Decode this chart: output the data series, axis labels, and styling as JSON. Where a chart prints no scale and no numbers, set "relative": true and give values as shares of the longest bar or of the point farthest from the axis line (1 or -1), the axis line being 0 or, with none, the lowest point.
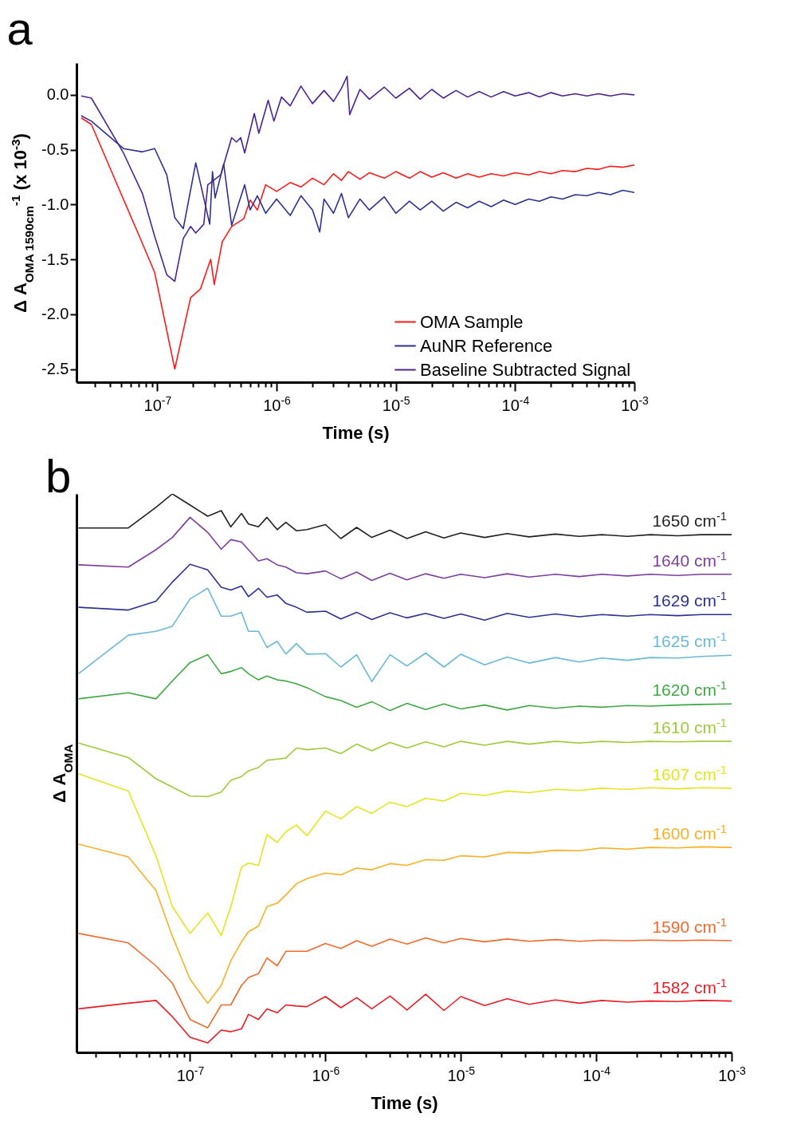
{
  "chart_data": [
    {
      "type": "line",
      "title": "a",
      "xlabel": "Time (s)",
      "ylabel": "Δ A$_{OMA 1590cm}$$^{-1}$ (x 10$^{-3}$)",
      "log": "x",
      "legend": "bottom right",
      "xlim": [
        2.1e-08,
        0.001
      ],
      "xticks": [
        {
          "value": 3e-08,
          "label": null
        },
        {
          "value": 4e-08,
          "label": null
        },
        {
          "value": 5e-08,
          "label": null
        },
        {
          "value": 6e-08,
          "label": null
        },
        {
          "value": 7e-08,
          "label": null
        },
        {
          "value": 8e-08,
          "label": null
        },
        {
          "value": 9e-08,
          "label": null
        },
        {
          "value": 1e-07,
          "label": "10$^{-7}$"
        },
        {
          "value": 2e-07,
          "label": null
        },
        {
          "value": 3e-07,
          "label": null
        },
        {
          "value": 4e-07,
          "label": null
        },
        {
          "value": 5e-07,
          "label": null
        },
        {
          "value": 6e-07,
          "label": null
        },
        {
          "value": 7e-07,
          "label": null
        },
        {
          "value": 8e-07,
          "label": null
        },
        {
          "value": 9e-07,
          "label": null
        },
        {
          "value": 1e-06,
          "label": "10$^{-6}$"
        },
        {
          "value": 2e-06,
          "label": null
        },
        {
          "value": 3e-06,
          "label": null
        },
        {
          "value": 4e-06,
          "label": null
        },
        {
          "value": 5e-06,
          "label": null
        },
        {
          "value": 6e-06,
          "label": null
        },
        {
          "value": 7e-06,
          "label": null
        },
        {
          "value": 8e-06,
          "label": null
        },
        {
          "value": 9e-06,
          "label": null
        },
        {
          "value": 1e-05,
          "label": "10$^{-5}$"
        },
        {
          "value": 2e-05,
          "label": null
        },
        {
          "value": 3e-05,
          "label": null
        },
        {
          "value": 4e-05,
          "label": null
        },
        {
          "value": 5e-05,
          "label": null
        },
        {
          "value": 6e-05,
          "label": null
        },
        {
          "value": 7e-05,
          "label": null
        },
        {
          "value": 8e-05,
          "label": null
        },
        {
          "value": 9e-05,
          "label": null
        },
        {
          "value": 0.0001,
          "label": "10$^{-4}$"
        },
        {
          "value": 0.0002,
          "label": null
        },
        {
          "value": 0.0003,
          "label": null
        },
        {
          "value": 0.0004,
          "label": null
        },
        {
          "value": 0.0005,
          "label": null
        },
        {
          "value": 0.0006,
          "label": null
        },
        {
          "value": 0.0007,
          "label": null
        },
        {
          "value": 0.0008,
          "label": null
        },
        {
          "value": 0.0009,
          "label": null
        },
        {
          "value": 0.001,
          "label": "10$^{-3}$"
        }
      ],
      "ylim": [
        -2.62,
        0.29
      ],
      "yticks": [
        {
          "value": 0,
          "label": "0.0"
        },
        -0.5,
        {
          "value": -1,
          "label": "-1.0"
        },
        -1.5,
        {
          "value": -2,
          "label": "-2.0"
        },
        -2.5
      ],
      "series": [
        {
          "name": "OMA Sample",
          "color": "#ff1a1a",
          "x": [
            2.3e-08,
            2.8e-08,
            5e-08,
            7e-08,
            9.5e-08,
            1.4e-07,
            1.9e-07,
            2.3e-07,
            2.8e-07,
            3e-07,
            3.5e-07,
            4.2e-07,
            5.3e-07,
            6e-07,
            6.9e-07,
            8.1e-07,
            1e-06,
            1.3e-06,
            1.6e-06,
            2e-06,
            2.5e-06,
            3e-06,
            3.5e-06,
            4e-06,
            5e-06,
            6e-06,
            8e-06,
            1e-05,
            1.3e-05,
            1.6e-05,
            2e-05,
            2.5e-05,
            3.2e-05,
            4e-05,
            5e-05,
            6.3e-05,
            8e-05,
            0.0001,
            0.00013,
            0.00016,
            0.0002,
            0.00025,
            0.00032,
            0.0004,
            0.0005,
            0.00063,
            0.0008,
            0.001
          ],
          "values": [
            -0.21,
            -0.27,
            -0.91,
            -1.28,
            -1.62,
            -2.5,
            -1.85,
            -1.77,
            -1.5,
            -1.73,
            -1.34,
            -1.2,
            -1.13,
            -0.96,
            -1.05,
            -0.82,
            -0.88,
            -0.8,
            -0.84,
            -0.76,
            -0.82,
            -0.72,
            -0.78,
            -0.7,
            -0.77,
            -0.71,
            -0.76,
            -0.7,
            -0.76,
            -0.7,
            -0.75,
            -0.71,
            -0.76,
            -0.72,
            -0.75,
            -0.72,
            -0.74,
            -0.71,
            -0.73,
            -0.7,
            -0.72,
            -0.69,
            -0.7,
            -0.67,
            -0.68,
            -0.65,
            -0.66,
            -0.64
          ]
        },
        {
          "name": "AuNR Reference",
          "color": "#2e3192",
          "x": [
            2.3e-08,
            2.8e-08,
            5.2e-08,
            7.5e-08,
            9.5e-08,
            1.2e-07,
            1.4e-07,
            1.65e-07,
            2.1e-07,
            2.75e-07,
            2.9e-07,
            3.05e-07,
            3.6e-07,
            4.2e-07,
            5.4e-07,
            6e-07,
            6.9e-07,
            8.1e-07,
            1e-06,
            1.3e-06,
            1.6e-06,
            2e-06,
            2.3e-06,
            2.5e-06,
            3e-06,
            3.5e-06,
            4e-06,
            5e-06,
            6e-06,
            8e-06,
            1e-05,
            1.3e-05,
            1.6e-05,
            2e-05,
            2.5e-05,
            3.2e-05,
            4e-05,
            5e-05,
            6.3e-05,
            8e-05,
            0.0001,
            0.00013,
            0.00016,
            0.0002,
            0.00025,
            0.00032,
            0.0004,
            0.0005,
            0.00063,
            0.0008,
            0.001
          ],
          "values": [
            -0.19,
            -0.24,
            -0.49,
            -0.52,
            -0.49,
            -0.73,
            -1.12,
            -1.22,
            -0.62,
            -1.18,
            -0.7,
            -0.94,
            -0.63,
            -1.19,
            -0.82,
            -1.05,
            -0.92,
            -1.08,
            -0.95,
            -1.1,
            -0.92,
            -1.05,
            -1.25,
            -0.95,
            -1.08,
            -0.9,
            -1.12,
            -0.95,
            -1.05,
            -0.93,
            -1.08,
            -0.97,
            -1.05,
            -0.97,
            -1.06,
            -0.98,
            -1.03,
            -0.97,
            -1.02,
            -0.96,
            -1.0,
            -0.95,
            -0.97,
            -0.93,
            -0.95,
            -0.91,
            -0.92,
            -0.89,
            -0.91,
            -0.87,
            -0.89
          ]
        },
        {
          "name": "Baseline Subtracted Signal",
          "color": "#4b2591",
          "x": [
            2.3e-08,
            2.8e-08,
            5.2e-08,
            7.5e-08,
            9.5e-08,
            1.2e-07,
            1.4e-07,
            1.65e-07,
            1.9e-07,
            2.1e-07,
            2.45e-07,
            2.65e-07,
            3.4e-07,
            4.2e-07,
            4.6e-07,
            5e-07,
            5.4e-07,
            6.5e-07,
            7.1e-07,
            8.5e-07,
            9.5e-07,
            1.1e-06,
            1.3e-06,
            1.6e-06,
            2e-06,
            2.5e-06,
            3e-06,
            3.5e-06,
            3.9e-06,
            4.1e-06,
            5e-06,
            6e-06,
            8e-06,
            1e-05,
            1.3e-05,
            1.6e-05,
            2e-05,
            2.5e-05,
            3.2e-05,
            4e-05,
            5e-05,
            6.3e-05,
            8e-05,
            0.0001,
            0.00013,
            0.00016,
            0.0002,
            0.00025,
            0.00032,
            0.0004,
            0.0005,
            0.00063,
            0.0008,
            0.001
          ],
          "values": [
            -0.01,
            -0.03,
            -0.53,
            -0.9,
            -1.29,
            -1.64,
            -1.7,
            -1.31,
            -1.2,
            -1.26,
            -1.18,
            -0.82,
            -0.73,
            -0.39,
            -0.43,
            -0.39,
            -0.53,
            -0.17,
            -0.35,
            -0.05,
            -0.24,
            -0.02,
            -0.1,
            0.08,
            -0.08,
            0.04,
            -0.06,
            0.06,
            0.17,
            -0.18,
            0.05,
            -0.04,
            0.07,
            -0.03,
            0.06,
            -0.04,
            0.05,
            -0.03,
            0.04,
            -0.02,
            0.03,
            -0.02,
            0.03,
            -0.01,
            0.02,
            -0.02,
            0.02,
            -0.01,
            0.01,
            -0.01,
            0.01,
            -0.01,
            0.01,
            0.0
          ]
        }
      ]
    },
    {
      "type": "line",
      "title": "b",
      "xlabel": "Time (s)",
      "ylabel": "Δ A$_{OMA}$",
      "log": "x",
      "relative": true,
      "xlim": [
        1.45e-08,
        0.001
      ],
      "xticks": [
        {
          "value": 2e-08,
          "label": null
        },
        {
          "value": 3e-08,
          "label": null
        },
        {
          "value": 4e-08,
          "label": null
        },
        {
          "value": 5e-08,
          "label": null
        },
        {
          "value": 6e-08,
          "label": null
        },
        {
          "value": 7e-08,
          "label": null
        },
        {
          "value": 8e-08,
          "label": null
        },
        {
          "value": 9e-08,
          "label": null
        },
        {
          "value": 1e-07,
          "label": "10$^{-7}$"
        },
        {
          "value": 2e-07,
          "label": null
        },
        {
          "value": 3e-07,
          "label": null
        },
        {
          "value": 4e-07,
          "label": null
        },
        {
          "value": 5e-07,
          "label": null
        },
        {
          "value": 6e-07,
          "label": null
        },
        {
          "value": 7e-07,
          "label": null
        },
        {
          "value": 8e-07,
          "label": null
        },
        {
          "value": 9e-07,
          "label": null
        },
        {
          "value": 1e-06,
          "label": "10$^{-6}$"
        },
        {
          "value": 2e-06,
          "label": null
        },
        {
          "value": 3e-06,
          "label": null
        },
        {
          "value": 4e-06,
          "label": null
        },
        {
          "value": 5e-06,
          "label": null
        },
        {
          "value": 6e-06,
          "label": null
        },
        {
          "value": 7e-06,
          "label": null
        },
        {
          "value": 8e-06,
          "label": null
        },
        {
          "value": 9e-06,
          "label": null
        },
        {
          "value": 1e-05,
          "label": "10$^{-5}$"
        },
        {
          "value": 2e-05,
          "label": null
        },
        {
          "value": 3e-05,
          "label": null
        },
        {
          "value": 4e-05,
          "label": null
        },
        {
          "value": 5e-05,
          "label": null
        },
        {
          "value": 6e-05,
          "label": null
        },
        {
          "value": 7e-05,
          "label": null
        },
        {
          "value": 8e-05,
          "label": null
        },
        {
          "value": 9e-05,
          "label": null
        },
        {
          "value": 0.0001,
          "label": "10$^{-4}$"
        },
        {
          "value": 0.0002,
          "label": null
        },
        {
          "value": 0.0003,
          "label": null
        },
        {
          "value": 0.0004,
          "label": null
        },
        {
          "value": 0.0005,
          "label": null
        },
        {
          "value": 0.0006,
          "label": null
        },
        {
          "value": 0.0007,
          "label": null
        },
        {
          "value": 0.0008,
          "label": null
        },
        {
          "value": 0.0009,
          "label": null
        },
        {
          "value": 0.001,
          "label": "10$^{-3}$"
        }
      ],
      "x": [
        1.5e-08,
        3.5e-08,
        5.6e-08,
        7.4e-08,
        1e-07,
        1.35e-07,
        1.7e-07,
        2e-07,
        2.4e-07,
        2.7e-07,
        3.2e-07,
        3.7e-07,
        4.4e-07,
        5.1e-07,
        6.1e-07,
        7.3e-07,
        1e-06,
        1.3e-06,
        1.7e-06,
        2.2e-06,
        3e-06,
        4e-06,
        5.5e-06,
        7.5e-06,
        1e-05,
        1.5e-05,
        2.2e-05,
        3.2e-05,
        5e-05,
        7.5e-05,
        0.00011,
        0.00017,
        0.00025,
        0.0004,
        0.0006,
        0.001
      ],
      "series": [
        {
          "name": "1650 cm$^{-1}$",
          "color": "#231f20",
          "values": [
            0.939,
            0.939,
            0.976,
            1.0,
            0.98,
            0.96,
            0.97,
            0.941,
            0.965,
            0.946,
            0.941,
            0.958,
            0.936,
            0.949,
            0.934,
            0.936,
            0.945,
            0.92,
            0.94,
            0.922,
            0.935,
            0.92,
            0.932,
            0.921,
            0.93,
            0.922,
            0.929,
            0.923,
            0.928,
            0.924,
            0.927,
            0.924,
            0.927,
            0.925,
            0.927,
            0.927
          ]
        },
        {
          "name": "1640 cm$^{-1}$",
          "color": "#7b3fa0",
          "values": [
            0.873,
            0.869,
            0.9,
            0.922,
            0.958,
            0.931,
            0.901,
            0.918,
            0.914,
            0.9,
            0.88,
            0.884,
            0.873,
            0.869,
            0.859,
            0.857,
            0.862,
            0.848,
            0.86,
            0.845,
            0.858,
            0.846,
            0.857,
            0.849,
            0.856,
            0.85,
            0.857,
            0.851,
            0.856,
            0.852,
            0.856,
            0.853,
            0.856,
            0.854,
            0.856,
            0.856
          ]
        },
        {
          "name": "1629 cm$^{-1}$",
          "color": "#2e3192",
          "values": [
            0.797,
            0.792,
            0.808,
            0.842,
            0.874,
            0.864,
            0.833,
            0.828,
            0.835,
            0.816,
            0.831,
            0.815,
            0.819,
            0.804,
            0.797,
            0.788,
            0.79,
            0.776,
            0.788,
            0.775,
            0.787,
            0.778,
            0.786,
            0.777,
            0.785,
            0.774,
            0.786,
            0.779,
            0.785,
            0.78,
            0.784,
            0.781,
            0.784,
            0.782,
            0.784,
            0.784
          ]
        },
        {
          "name": "1625 cm$^{-1}$",
          "color": "#6ab8d8",
          "values": [
            0.678,
            0.747,
            0.754,
            0.763,
            0.812,
            0.831,
            0.781,
            0.781,
            0.788,
            0.754,
            0.754,
            0.725,
            0.736,
            0.713,
            0.732,
            0.713,
            0.714,
            0.69,
            0.712,
            0.664,
            0.712,
            0.692,
            0.715,
            0.69,
            0.713,
            0.694,
            0.708,
            0.697,
            0.707,
            0.699,
            0.706,
            0.702,
            0.707,
            0.706,
            0.709,
            0.711
          ]
        },
        {
          "name": "1620 cm$^{-1}$",
          "color": "#3fa843",
          "values": [
            0.633,
            0.644,
            0.633,
            0.665,
            0.698,
            0.712,
            0.678,
            0.682,
            0.689,
            0.678,
            0.667,
            0.674,
            0.667,
            0.665,
            0.66,
            0.653,
            0.637,
            0.63,
            0.618,
            0.628,
            0.612,
            0.625,
            0.614,
            0.624,
            0.615,
            0.622,
            0.613,
            0.621,
            0.616,
            0.62,
            0.618,
            0.621,
            0.62,
            0.622,
            0.623,
            0.624
          ]
        },
        {
          "name": "1610 cm$^{-1}$",
          "color": "#9fcb3a",
          "values": [
            0.554,
            0.528,
            0.49,
            0.475,
            0.459,
            0.458,
            0.466,
            0.487,
            0.494,
            0.504,
            0.51,
            0.523,
            0.525,
            0.527,
            0.545,
            0.542,
            0.545,
            0.535,
            0.552,
            0.54,
            0.555,
            0.545,
            0.556,
            0.547,
            0.557,
            0.55,
            0.557,
            0.552,
            0.557,
            0.554,
            0.557,
            0.555,
            0.557,
            0.556,
            0.557,
            0.557
          ]
        },
        {
          "name": "1607 cm$^{-1}$",
          "color": "#e3e61e",
          "values": [
            0.499,
            0.468,
            0.352,
            0.261,
            0.213,
            0.25,
            0.209,
            0.261,
            0.332,
            0.339,
            0.335,
            0.39,
            0.376,
            0.395,
            0.407,
            0.388,
            0.432,
            0.418,
            0.44,
            0.428,
            0.448,
            0.44,
            0.455,
            0.45,
            0.464,
            0.46,
            0.468,
            0.465,
            0.471,
            0.469,
            0.473,
            0.471,
            0.474,
            0.472,
            0.474,
            0.473
          ]
        },
        {
          "name": "1600 cm$^{-1}$",
          "color": "#f6b126",
          "values": [
            0.373,
            0.35,
            0.29,
            0.208,
            0.131,
            0.088,
            0.12,
            0.164,
            0.198,
            0.216,
            0.226,
            0.261,
            0.267,
            0.282,
            0.302,
            0.311,
            0.321,
            0.318,
            0.33,
            0.327,
            0.338,
            0.335,
            0.345,
            0.344,
            0.352,
            0.35,
            0.358,
            0.357,
            0.362,
            0.361,
            0.366,
            0.364,
            0.367,
            0.366,
            0.368,
            0.367
          ]
        },
        {
          "name": "1590 cm$^{-1}$",
          "color": "#f26a2b",
          "values": [
            0.213,
            0.196,
            0.155,
            0.124,
            0.059,
            0.044,
            0.085,
            0.085,
            0.12,
            0.134,
            0.141,
            0.169,
            0.155,
            0.181,
            0.181,
            0.181,
            0.195,
            0.186,
            0.2,
            0.19,
            0.203,
            0.194,
            0.205,
            0.196,
            0.204,
            0.198,
            0.203,
            0.199,
            0.202,
            0.199,
            0.201,
            0.2,
            0.201,
            0.2,
            0.201,
            0.2
          ]
        },
        {
          "name": "1582 cm$^{-1}$",
          "color": "#ed1c24",
          "values": [
            0.078,
            0.088,
            0.093,
            0.064,
            0.027,
            0.017,
            0.04,
            0.037,
            0.042,
            0.068,
            0.059,
            0.078,
            0.071,
            0.085,
            0.083,
            0.082,
            0.1,
            0.08,
            0.098,
            0.078,
            0.101,
            0.076,
            0.104,
            0.075,
            0.1,
            0.084,
            0.096,
            0.086,
            0.094,
            0.088,
            0.093,
            0.09,
            0.092,
            0.091,
            0.093,
            0.092
          ]
        }
      ]
    }
  ]
}
